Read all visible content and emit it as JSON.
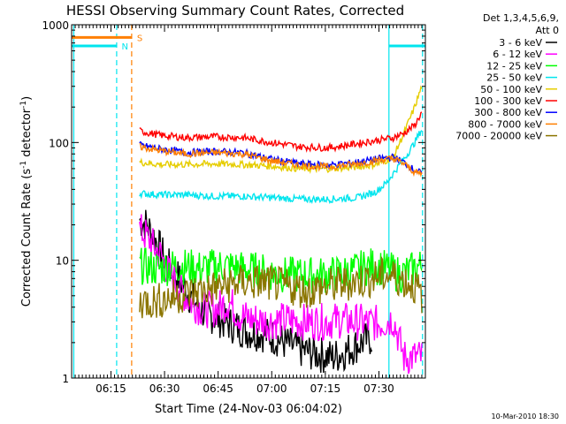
{
  "chart_data": {
    "type": "line",
    "title": "HESSI Observing Summary Count Rates, Corrected",
    "xlabel": "Start Time (24-Nov-03 06:04:02)",
    "ylabel_main": "Corrected Count Rate (s",
    "ylabel_sup1": "-1",
    "ylabel_mid": " detector",
    "ylabel_sup2": "-1",
    "ylabel_end": ")",
    "y_scale": "log",
    "ylim": [
      1,
      1000
    ],
    "xlim_minutes": [
      0,
      99
    ],
    "x_ticks": [
      {
        "m": 11,
        "label": "06:15"
      },
      {
        "m": 26,
        "label": "06:30"
      },
      {
        "m": 41,
        "label": "06:45"
      },
      {
        "m": 56,
        "label": "07:00"
      },
      {
        "m": 71,
        "label": "07:15"
      },
      {
        "m": 86,
        "label": "07:30"
      }
    ],
    "y_ticks": [
      {
        "v": 1,
        "label": "1"
      },
      {
        "v": 10,
        "label": "10"
      },
      {
        "v": 100,
        "label": "100"
      },
      {
        "v": 1000,
        "label": "1000"
      }
    ],
    "legend_header": [
      "Det 1,3,4,5,6,9,",
      "Att 0"
    ],
    "legend_position": "right",
    "footer_date": "10-Mar-2010 18:30",
    "flags": [
      {
        "label": "S",
        "color": "#ff7f00",
        "m0": 0,
        "m1": 16.8,
        "v": 780
      },
      {
        "label": "N",
        "color": "#00e5ee",
        "m0": 0,
        "m1": 12.5,
        "v": 660
      },
      {
        "label": "",
        "color": "#00e5ee",
        "m0": 88.8,
        "m1": 99,
        "v": 660
      }
    ],
    "vlines": [
      {
        "m": 0.6,
        "color": "#00e5ee",
        "dash": false
      },
      {
        "m": 12.6,
        "color": "#00e5ee",
        "dash": true
      },
      {
        "m": 16.8,
        "color": "#ff7f00",
        "dash": true
      },
      {
        "m": 88.8,
        "color": "#00e5ee",
        "dash": false
      },
      {
        "m": 98.2,
        "color": "#00e5ee",
        "dash": true
      }
    ],
    "series": [
      {
        "name": "3 - 6 keV",
        "color": "#000000",
        "x": [
          19,
          21,
          23,
          25,
          27,
          30,
          33,
          37,
          41,
          45,
          49,
          53,
          57,
          61,
          65,
          69,
          73,
          77,
          81,
          84
        ],
        "y": [
          22,
          20,
          16,
          12,
          9,
          7,
          5,
          3.6,
          3.2,
          2.8,
          2.5,
          2.4,
          2.2,
          1.9,
          1.7,
          1.6,
          1.5,
          1.7,
          2.0,
          2.2
        ]
      },
      {
        "name": "6 - 12 keV",
        "color": "#ff00ff",
        "x": [
          19,
          21,
          23,
          25,
          27,
          30,
          33,
          37,
          41,
          44,
          47,
          50,
          55,
          60,
          65,
          70,
          75,
          80,
          86,
          90,
          93,
          98
        ],
        "y": [
          18,
          16,
          13,
          11,
          8,
          6,
          4.5,
          3.8,
          3.9,
          4.5,
          3.4,
          3.2,
          3.0,
          3.1,
          3.0,
          3.0,
          3.1,
          3.0,
          2.9,
          3.2,
          1.5,
          1.5
        ]
      },
      {
        "name": "12 - 25 keV",
        "color": "#00ff00",
        "x": [
          19,
          24,
          30,
          36,
          42,
          48,
          54,
          60,
          66,
          72,
          78,
          84,
          88,
          92,
          96,
          98
        ],
        "y": [
          9,
          8.5,
          9,
          8.5,
          9,
          8.5,
          8,
          7.5,
          7.5,
          7.5,
          8,
          9,
          8.5,
          7.5,
          8.5,
          9
        ]
      },
      {
        "name": "25 - 50 keV",
        "color": "#00e5ee",
        "x": [
          19,
          25,
          32,
          40,
          48,
          56,
          64,
          72,
          80,
          85,
          88,
          91,
          94,
          96,
          98
        ],
        "y": [
          37,
          36,
          36,
          35,
          35,
          34,
          33,
          33,
          34,
          38,
          45,
          60,
          80,
          100,
          130
        ]
      },
      {
        "name": "50 - 100 keV",
        "color": "#e6cd00",
        "x": [
          19,
          25,
          32,
          40,
          48,
          56,
          64,
          72,
          80,
          86,
          90,
          93,
          96,
          98
        ],
        "y": [
          68,
          65,
          65,
          66,
          65,
          63,
          60,
          60,
          62,
          66,
          75,
          120,
          200,
          300
        ]
      },
      {
        "name": "100 - 300 keV",
        "color": "#ff0000",
        "x": [
          19,
          25,
          32,
          40,
          48,
          56,
          64,
          72,
          80,
          86,
          90,
          93,
          96,
          98
        ],
        "y": [
          125,
          115,
          110,
          112,
          110,
          100,
          92,
          90,
          98,
          105,
          110,
          120,
          140,
          180
        ]
      },
      {
        "name": "300 - 800 keV",
        "color": "#0000ff",
        "x": [
          19,
          25,
          32,
          40,
          48,
          56,
          64,
          72,
          80,
          86,
          90,
          93,
          96,
          98
        ],
        "y": [
          95,
          88,
          82,
          84,
          82,
          72,
          66,
          64,
          68,
          73,
          75,
          68,
          58,
          55
        ]
      },
      {
        "name": "800 - 7000 keV",
        "color": "#ff7f00",
        "x": [
          19,
          25,
          32,
          40,
          48,
          56,
          64,
          72,
          80,
          86,
          90,
          93,
          96,
          98
        ],
        "y": [
          92,
          85,
          80,
          82,
          80,
          70,
          64,
          62,
          66,
          71,
          73,
          66,
          56,
          54
        ]
      },
      {
        "name": "7000 - 20000 keV",
        "color": "#8b7500",
        "x": [
          19,
          24,
          30,
          36,
          42,
          48,
          54,
          60,
          66,
          72,
          78,
          84,
          88,
          92,
          96,
          98
        ],
        "y": [
          4.5,
          4.5,
          5,
          5.5,
          6,
          6.5,
          6.5,
          6,
          5.5,
          6,
          6.5,
          7,
          7.5,
          7,
          6,
          5
        ]
      }
    ]
  }
}
